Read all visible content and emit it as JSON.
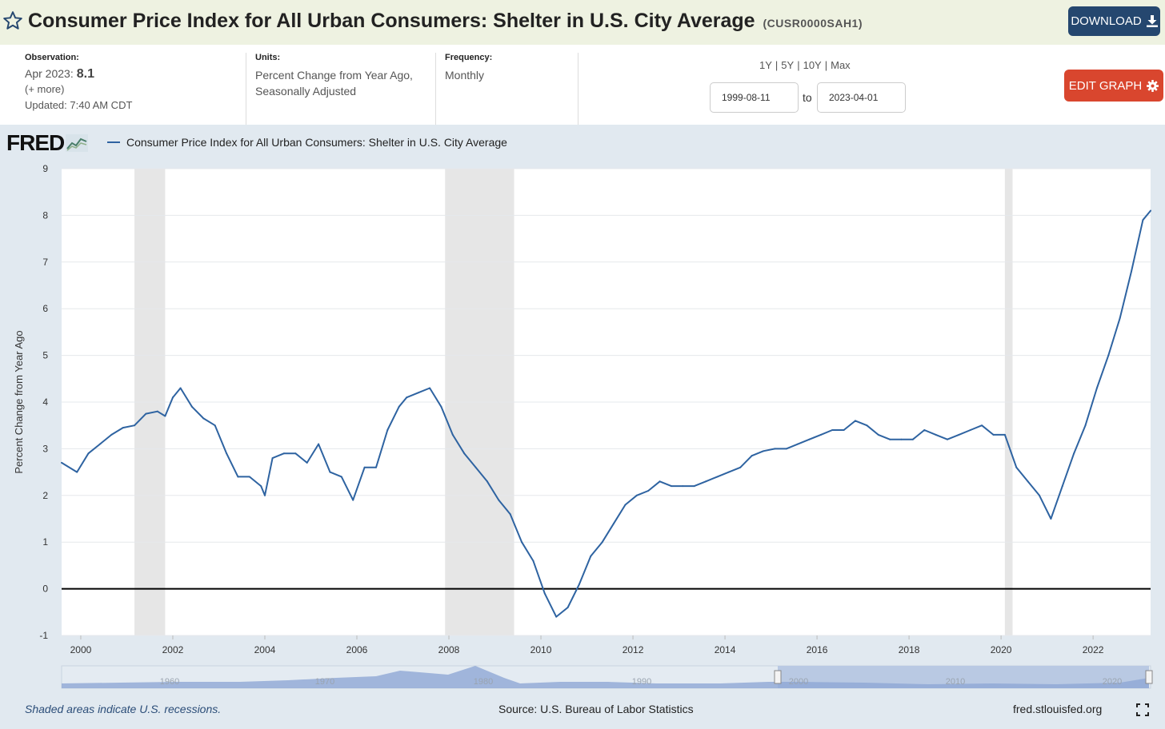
{
  "header": {
    "title": "Consumer Price Index for All Urban Consumers: Shelter in U.S. City Average",
    "series_id": "(CUSR0000SAH1)",
    "download_label": "DOWNLOAD"
  },
  "meta": {
    "observation_label": "Observation:",
    "observation_date": "Apr 2023:",
    "observation_value": "8.1",
    "more_link": "(+ more)",
    "updated": "Updated: 7:40 AM CDT",
    "units_label": "Units:",
    "units_line1": "Percent Change from Year Ago,",
    "units_line2": "Seasonally Adjusted",
    "frequency_label": "Frequency:",
    "frequency_value": "Monthly"
  },
  "controls": {
    "range_1y": "1Y",
    "range_5y": "5Y",
    "range_10y": "10Y",
    "range_max": "Max",
    "sep": "|",
    "date_from": "1999-08-11",
    "date_to": "2023-04-01",
    "to_label": "to",
    "edit_graph_label": "EDIT GRAPH"
  },
  "footer": {
    "recession_note": "Shaded areas indicate U.S. recessions.",
    "source": "Source: U.S. Bureau of Labor Statistics",
    "site": "fred.stlouisfed.org"
  },
  "logo": "FRED",
  "colors": {
    "line": "#2e63a1",
    "recession": "#e6e6e6",
    "accent_download": "#25476f",
    "accent_edit": "#d9462e",
    "title_bg": "#eef2e1",
    "chart_bg": "#e1e9f0"
  },
  "icons": {
    "star": "star-icon",
    "download": "download-icon",
    "gear": "gear-icon",
    "fullscreen": "fullscreen-icon",
    "logo_graph": "fred-graph-icon"
  },
  "navigator": {
    "tick_labels": [
      "1960",
      "1970",
      "1980",
      "1990",
      "2000",
      "2010",
      "2020"
    ]
  },
  "chart_data": {
    "type": "line",
    "title": "",
    "xlabel": "",
    "ylabel": "Percent Change from Year Ago",
    "legend": "Consumer Price Index for All Urban Consumers: Shelter in U.S. City Average",
    "legend_position": "top-left",
    "grid": true,
    "ylim": [
      -1,
      9
    ],
    "xlim": [
      "1999-08-01",
      "2023-04-01"
    ],
    "yticks": [
      -1,
      0,
      1,
      2,
      3,
      4,
      5,
      6,
      7,
      8,
      9
    ],
    "xticks": [
      "2000",
      "2002",
      "2004",
      "2006",
      "2008",
      "2010",
      "2012",
      "2014",
      "2016",
      "2018",
      "2020",
      "2022"
    ],
    "recessions": [
      [
        "2001-03-01",
        "2001-11-01"
      ],
      [
        "2007-12-01",
        "2009-06-01"
      ],
      [
        "2020-02-01",
        "2020-04-01"
      ]
    ],
    "series": [
      {
        "name": "Consumer Price Index for All Urban Consumers: Shelter in U.S. City Average",
        "x": [
          "1999-08",
          "1999-12",
          "2000-03",
          "2000-06",
          "2000-09",
          "2000-12",
          "2001-03",
          "2001-06",
          "2001-09",
          "2001-11",
          "2002-01",
          "2002-03",
          "2002-06",
          "2002-09",
          "2002-12",
          "2003-03",
          "2003-06",
          "2003-09",
          "2003-12",
          "2004-01",
          "2004-03",
          "2004-06",
          "2004-09",
          "2004-12",
          "2005-03",
          "2005-06",
          "2005-09",
          "2005-12",
          "2006-03",
          "2006-06",
          "2006-09",
          "2006-12",
          "2007-02",
          "2007-05",
          "2007-08",
          "2007-11",
          "2008-02",
          "2008-05",
          "2008-08",
          "2008-11",
          "2009-02",
          "2009-05",
          "2009-08",
          "2009-11",
          "2010-02",
          "2010-05",
          "2010-08",
          "2010-11",
          "2011-02",
          "2011-05",
          "2011-08",
          "2011-11",
          "2012-02",
          "2012-05",
          "2012-08",
          "2012-11",
          "2013-02",
          "2013-05",
          "2013-08",
          "2013-11",
          "2014-02",
          "2014-05",
          "2014-08",
          "2014-11",
          "2015-02",
          "2015-05",
          "2015-08",
          "2015-11",
          "2016-02",
          "2016-05",
          "2016-08",
          "2016-11",
          "2017-02",
          "2017-05",
          "2017-08",
          "2017-11",
          "2018-02",
          "2018-05",
          "2018-08",
          "2018-11",
          "2019-02",
          "2019-05",
          "2019-08",
          "2019-11",
          "2020-02",
          "2020-05",
          "2020-08",
          "2020-11",
          "2021-02",
          "2021-05",
          "2021-08",
          "2021-11",
          "2022-02",
          "2022-05",
          "2022-08",
          "2022-11",
          "2023-02",
          "2023-04"
        ],
        "values": [
          2.7,
          2.5,
          2.9,
          3.1,
          3.3,
          3.45,
          3.5,
          3.75,
          3.8,
          3.7,
          4.1,
          4.3,
          3.9,
          3.65,
          3.5,
          2.9,
          2.4,
          2.4,
          2.2,
          2.0,
          2.8,
          2.9,
          2.9,
          2.7,
          3.1,
          2.5,
          2.4,
          1.9,
          2.6,
          2.6,
          3.4,
          3.9,
          4.1,
          4.2,
          4.3,
          3.9,
          3.3,
          2.9,
          2.6,
          2.3,
          1.9,
          1.6,
          1.0,
          0.6,
          -0.1,
          -0.6,
          -0.4,
          0.1,
          0.7,
          1.0,
          1.4,
          1.8,
          2.0,
          2.1,
          2.3,
          2.2,
          2.2,
          2.2,
          2.3,
          2.4,
          2.5,
          2.6,
          2.85,
          2.95,
          3.0,
          3.0,
          3.1,
          3.2,
          3.3,
          3.4,
          3.4,
          3.6,
          3.5,
          3.3,
          3.2,
          3.2,
          3.2,
          3.4,
          3.3,
          3.2,
          3.3,
          3.4,
          3.5,
          3.3,
          3.3,
          2.6,
          2.3,
          2.0,
          1.5,
          2.2,
          2.9,
          3.5,
          4.3,
          5.0,
          5.8,
          6.8,
          7.9,
          8.1
        ]
      }
    ]
  }
}
